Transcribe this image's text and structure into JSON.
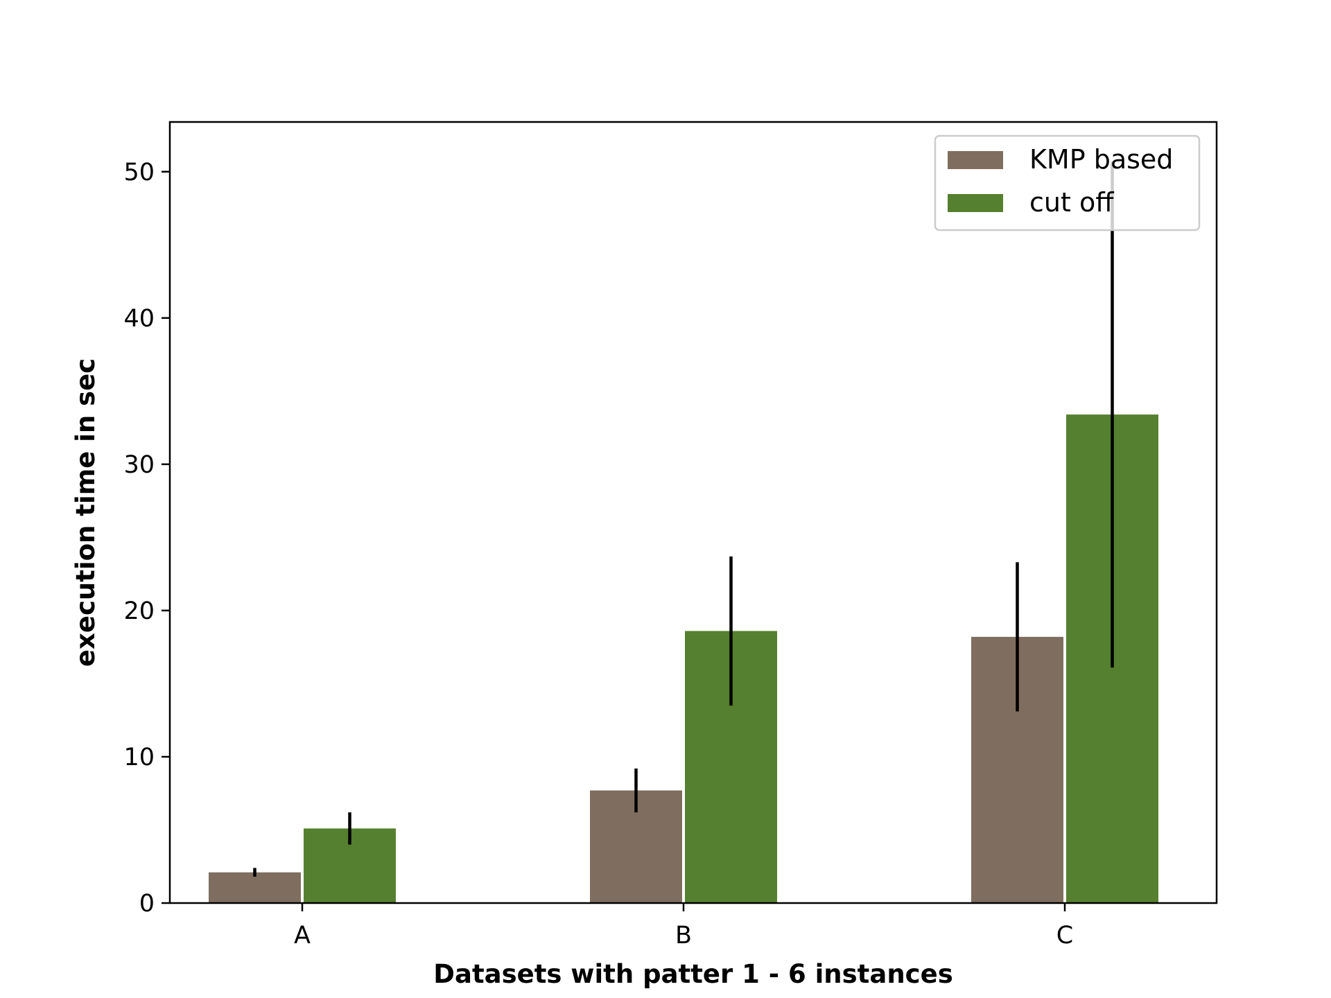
{
  "chart_data": {
    "type": "bar",
    "categories": [
      "A",
      "B",
      "C"
    ],
    "series": [
      {
        "name": "KMP based",
        "color": "#7f6e5f",
        "values": [
          2.1,
          7.7,
          18.2
        ],
        "errors": [
          0.3,
          1.5,
          5.1
        ]
      },
      {
        "name": "cut off",
        "color": "#55802f",
        "values": [
          5.1,
          18.6,
          33.4
        ],
        "errors": [
          1.1,
          5.1,
          17.3
        ]
      }
    ],
    "xlabel": "Datasets with patter 1 - 6 instances",
    "ylabel": "execution time in sec",
    "ylim": [
      0,
      53.4
    ],
    "yticks": [
      0,
      10,
      20,
      30,
      40,
      50
    ],
    "grid": false,
    "legend_position": "top-right"
  }
}
